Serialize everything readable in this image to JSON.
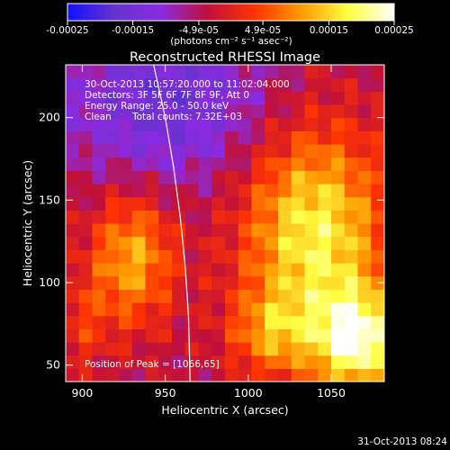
{
  "chart_data": {
    "type": "heatmap",
    "title": "Reconstructed RHESSI Image",
    "xlabel": "Heliocentric X (arcsec)",
    "ylabel": "Heliocentric Y (arcsec)",
    "xlim": [
      890,
      1082
    ],
    "ylim": [
      40,
      232
    ],
    "x_ticks": [
      900,
      950,
      1000,
      1050
    ],
    "y_ticks": [
      50,
      100,
      150,
      200
    ],
    "colorbar": {
      "range": [
        -0.00025,
        0.00025
      ],
      "ticks": [
        {
          "value": -0.00025,
          "label": "-0.00025"
        },
        {
          "value": -0.00015,
          "label": "-0.00015"
        },
        {
          "value": -4.9e-05,
          "label": "-4.9e-05"
        },
        {
          "value": 4.9e-05,
          "label": "4.9e-05"
        },
        {
          "value": 0.00015,
          "label": "0.00015"
        },
        {
          "value": 0.00025,
          "label": "0.00025"
        }
      ],
      "unit_label": "(photons cm⁻² s⁻¹ asec⁻²)",
      "colors": [
        "#1010ff",
        "#6633cc",
        "#8a2be2",
        "#c0103a",
        "#ff3300",
        "#ff9900",
        "#ffff40",
        "#ffffff"
      ]
    },
    "annotations": {
      "time_range": "30-Oct-2013 10:57:20.000 to 11:02:04.000",
      "detectors": "Detectors: 3F 5F 6F 7F 8F 9F, Att 0",
      "energy": "Energy Range: 25.0 - 50.0 keV",
      "algorithm": "Clean",
      "total_counts": "Total counts: 7.32E+03",
      "peak": "Position of Peak = [1066,65]"
    },
    "limb_curve": [
      [
        943,
        232
      ],
      [
        950,
        200
      ],
      [
        955,
        170
      ],
      [
        959,
        140
      ],
      [
        962,
        110
      ],
      [
        964,
        80
      ],
      [
        965,
        40
      ]
    ],
    "intensity_grid": {
      "x_range": [
        890,
        1082
      ],
      "y_range": [
        40,
        232
      ],
      "cols": 24,
      "rows": 24,
      "blobs": [
        {
          "x": 1040,
          "y": 130,
          "sx": 30,
          "sy": 45,
          "amp": 0.00022
        },
        {
          "x": 1066,
          "y": 65,
          "sx": 18,
          "sy": 22,
          "amp": 0.00025
        },
        {
          "x": 1015,
          "y": 70,
          "sx": 18,
          "sy": 18,
          "amp": 0.00012
        },
        {
          "x": 930,
          "y": 115,
          "sx": 18,
          "sy": 28,
          "amp": 0.00016
        },
        {
          "x": 900,
          "y": 75,
          "sx": 12,
          "sy": 20,
          "amp": 6e-05
        },
        {
          "x": 950,
          "y": 210,
          "sx": 45,
          "sy": 35,
          "amp": -0.00012
        }
      ]
    },
    "footer": "31-Oct-2013 08:24"
  }
}
